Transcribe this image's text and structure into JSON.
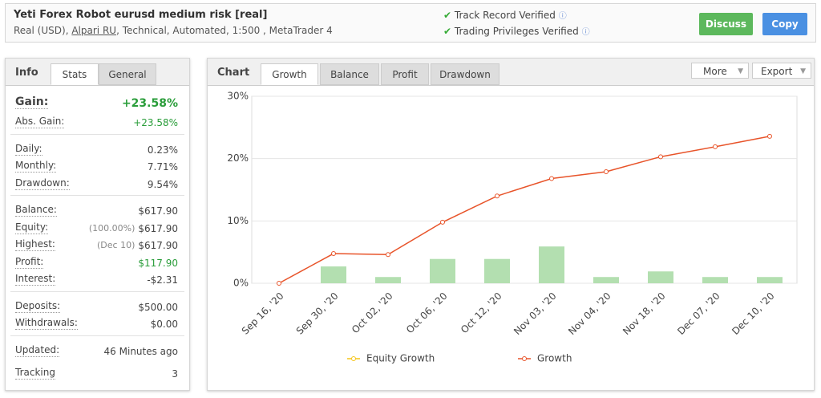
{
  "header": {
    "title": "Yeti Forex Robot eurusd medium risk [real]",
    "subtitle_prefix": "Real (USD),",
    "broker": "Alpari RU",
    "subtitle_suffix": ", Technical, Automated, 1:500 , MetaTrader 4",
    "verified": [
      "Track Record Verified",
      "Trading Privileges Verified"
    ],
    "buttons": [
      "Discuss",
      "Copy"
    ]
  },
  "info_panel": {
    "tabs": [
      "Info",
      "Stats",
      "General"
    ],
    "groups": [
      [
        {
          "label": "Gain:",
          "value": "+23.58%"
        },
        {
          "label": "Abs. Gain:",
          "value": "+23.58%"
        }
      ],
      [
        {
          "label": "Daily:",
          "value": "0.23%"
        },
        {
          "label": "Monthly:",
          "value": "7.71%"
        },
        {
          "label": "Drawdown:",
          "value": "9.54%"
        }
      ],
      [
        {
          "label": "Balance:",
          "value": "$617.90"
        },
        {
          "label": "Equity:",
          "note": "(100.00%)",
          "value": "$617.90"
        },
        {
          "label": "Highest:",
          "note": "(Dec 10)",
          "value": "$617.90"
        },
        {
          "label": "Profit:",
          "value": "$117.90"
        },
        {
          "label": "Interest:",
          "value": "-$2.31"
        }
      ],
      [
        {
          "label": "Deposits:",
          "value": "$500.00"
        },
        {
          "label": "Withdrawals:",
          "value": "$0.00"
        }
      ],
      [
        {
          "label": "Updated:",
          "value": "46 Minutes ago"
        },
        {
          "label": "Tracking",
          "value": "3"
        }
      ]
    ]
  },
  "chart_panel": {
    "tabs": [
      "Chart",
      "Growth",
      "Balance",
      "Profit",
      "Drawdown"
    ],
    "menus": [
      "More",
      "Export"
    ]
  },
  "chart_data": {
    "type": "line",
    "categories": [
      "Sep 16, '20",
      "Sep 30, '20",
      "Oct 02, '20",
      "Oct 06, '20",
      "Oct 12, '20",
      "Nov 03, '20",
      "Nov 04, '20",
      "Nov 18, '20",
      "Dec 07, '20",
      "Dec 10, '20"
    ],
    "series": [
      {
        "name": "Equity Growth",
        "color": "#f5c518",
        "values": [
          null,
          null,
          null,
          null,
          null,
          null,
          null,
          null,
          null,
          null
        ]
      },
      {
        "name": "Growth",
        "color": "#e8542a",
        "values": [
          0,
          4.76,
          4.6,
          9.8,
          14.0,
          16.8,
          17.9,
          20.3,
          21.9,
          23.58
        ]
      }
    ],
    "bar_values": [
      null,
      2.7,
      1.0,
      3.9,
      3.9,
      5.9,
      1.0,
      1.9,
      1.0,
      1.0
    ],
    "bar_color": "#b3dfb0",
    "ylim": [
      0,
      30
    ],
    "yticks": [
      {
        "value": 0,
        "label": "0%"
      },
      {
        "value": 10,
        "label": "10%"
      },
      {
        "value": 20,
        "label": "20%"
      },
      {
        "value": 30,
        "label": "30%"
      }
    ],
    "grid": true
  }
}
